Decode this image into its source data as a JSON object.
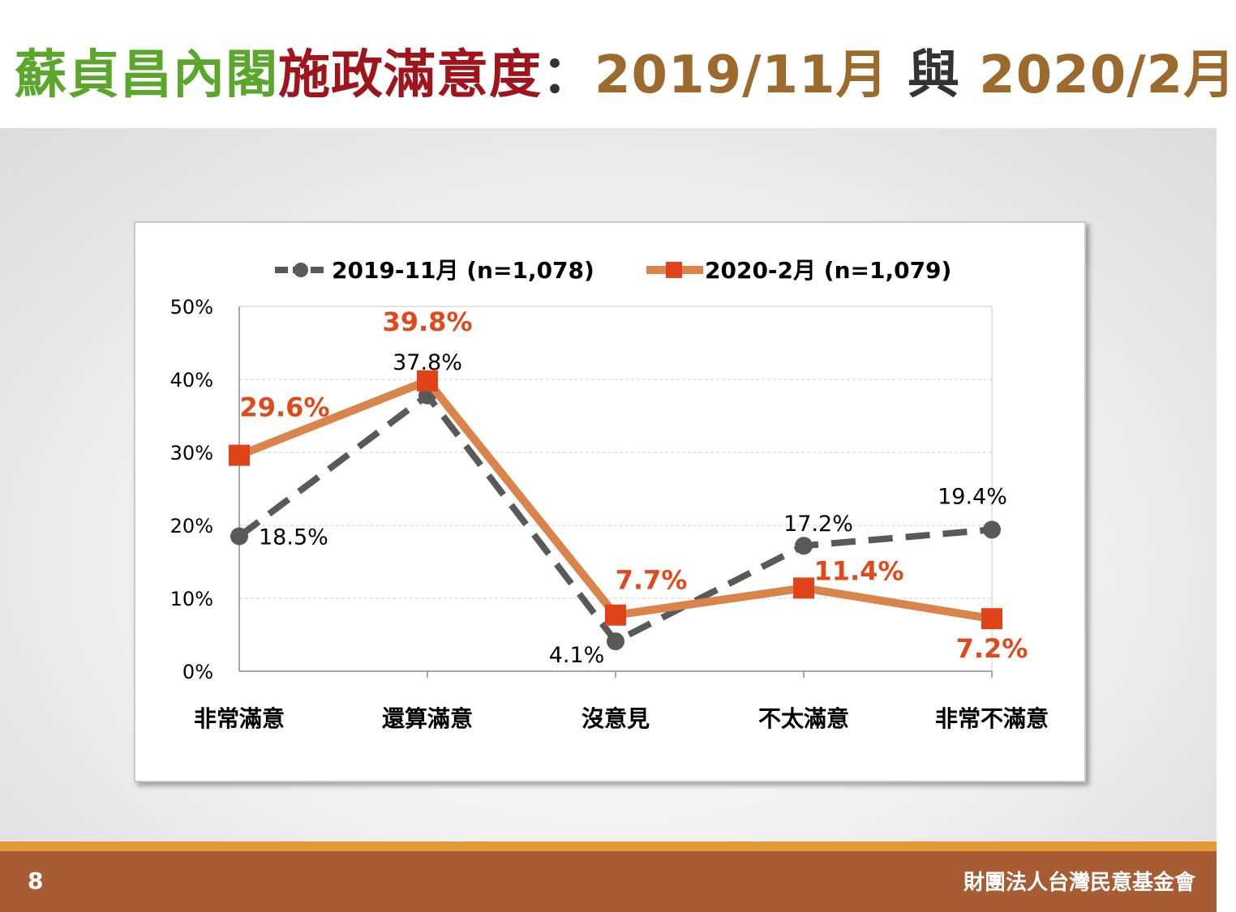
{
  "title": {
    "part1": "蘇貞昌內閣",
    "part2": "施政滿意度",
    "part3": "：",
    "part4": "2019/11月",
    "part5": " 與 ",
    "part6": "2020/2月"
  },
  "colors": {
    "title_green": "#5aa72c",
    "title_red": "#a0151b",
    "title_gold": "#9c6a2d",
    "series1": "#595959",
    "series2_line": "#d9844a",
    "series2_marker": "#e0421a",
    "series2_label": "#e04a1a",
    "footer": "#a75c33",
    "footer_accent": "#e29a36"
  },
  "chart_data": {
    "type": "line",
    "categories": [
      "非常滿意",
      "還算滿意",
      "沒意見",
      "不太滿意",
      "非常不滿意"
    ],
    "ylim": [
      0,
      50
    ],
    "yticks": [
      0,
      10,
      20,
      30,
      40,
      50
    ],
    "ytick_labels": [
      "0%",
      "10%",
      "20%",
      "30%",
      "40%",
      "50%"
    ],
    "grid": true,
    "legend_position": "top",
    "series": [
      {
        "name": "2019-11月 (n=1,078)",
        "values": [
          18.5,
          37.8,
          4.1,
          17.2,
          19.4
        ],
        "labels": [
          "18.5%",
          "37.8%",
          "4.1%",
          "17.2%",
          "19.4%"
        ],
        "style": "dashed",
        "marker": "circle"
      },
      {
        "name": "2020-2月 (n=1,079)",
        "values": [
          29.6,
          39.8,
          7.7,
          11.4,
          7.2
        ],
        "labels": [
          "29.6%",
          "39.8%",
          "7.7%",
          "11.4%",
          "7.2%"
        ],
        "style": "solid",
        "marker": "square"
      }
    ]
  },
  "footer": {
    "page_number": "8",
    "organization": "財團法人台灣民意基金會"
  }
}
